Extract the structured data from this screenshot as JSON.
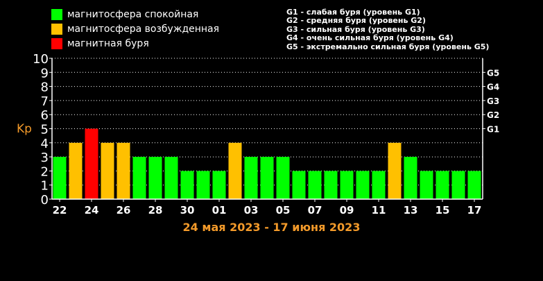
{
  "legend": {
    "items": [
      {
        "label": "магнитосфера спокойная",
        "color": "#00ff00"
      },
      {
        "label": "магнитосфера возбужденная",
        "color": "#ffc000"
      },
      {
        "label": "магнитная буря",
        "color": "#ff0000"
      }
    ]
  },
  "storm_levels": [
    "G1 - слабая буря (уровень G1)",
    "G2 - средняя буря (уровень G2)",
    "G3 - сильная буря (уровень G3)",
    "G4 - очень сильная буря (уровень G4)",
    "G5 - экстремально сильная буря (уровень G5)"
  ],
  "colors": {
    "quiet": "#00ff00",
    "active": "#ffc000",
    "storm": "#ff0000",
    "label": "#f39a2a"
  },
  "chart_data": {
    "type": "bar",
    "title": "24 мая 2023 - 17 июня 2023",
    "ylabel": "Kp",
    "xlabel": "",
    "ylim": [
      0,
      10
    ],
    "yticks": [
      0,
      1,
      2,
      3,
      4,
      5,
      6,
      7,
      8,
      9,
      10
    ],
    "xtick_labels": [
      "22",
      "24",
      "26",
      "28",
      "30",
      "01",
      "03",
      "05",
      "07",
      "09",
      "11",
      "13",
      "15",
      "17"
    ],
    "g_levels": [
      {
        "label": "G1",
        "value": 5
      },
      {
        "label": "G2",
        "value": 6
      },
      {
        "label": "G3",
        "value": 7
      },
      {
        "label": "G4",
        "value": 8
      },
      {
        "label": "G5",
        "value": 9
      }
    ],
    "grid": true,
    "values": [
      3,
      4,
      5,
      4,
      4,
      3,
      3,
      3,
      2,
      2,
      2,
      4,
      3,
      3,
      3,
      2,
      2,
      2,
      2,
      2,
      2,
      4,
      3,
      2,
      2,
      2,
      2
    ],
    "states": [
      "quiet",
      "active",
      "storm",
      "active",
      "active",
      "quiet",
      "quiet",
      "quiet",
      "quiet",
      "quiet",
      "quiet",
      "active",
      "quiet",
      "quiet",
      "quiet",
      "quiet",
      "quiet",
      "quiet",
      "quiet",
      "quiet",
      "quiet",
      "active",
      "quiet",
      "quiet",
      "quiet",
      "quiet",
      "quiet"
    ]
  }
}
